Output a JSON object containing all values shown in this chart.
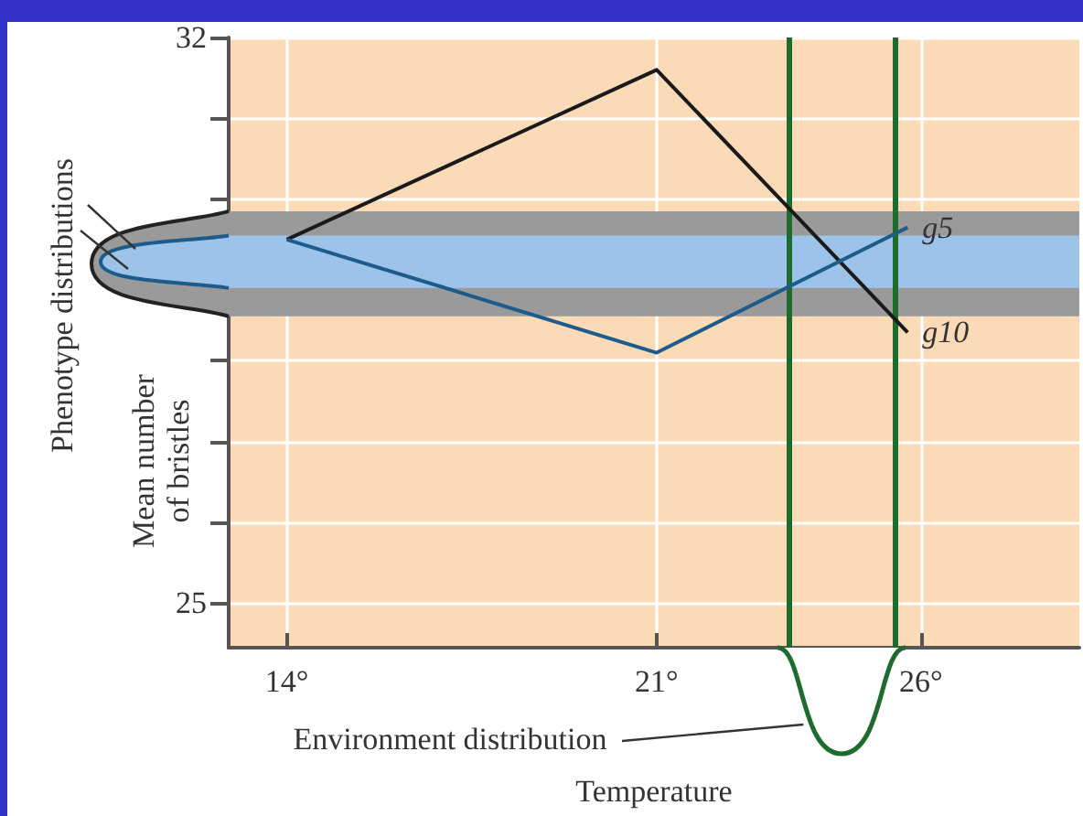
{
  "chart_data": {
    "type": "line",
    "ylabel": "Mean number\nof bristles",
    "xlabel": "Temperature",
    "annotations": [
      "Phenotype distributions",
      "Environment distribution"
    ],
    "series": [
      {
        "name": "g10",
        "color": "#1a1a1a",
        "x": [
          14,
          21,
          25.75
        ],
        "values": [
          29.5,
          31.6,
          28.35
        ]
      },
      {
        "name": "g5",
        "color": "#1d5c8a",
        "x": [
          14,
          21,
          25.75
        ],
        "values": [
          29.5,
          28.1,
          29.65
        ]
      }
    ],
    "xlim": [
      12.9,
      29
    ],
    "xticks": [
      {
        "value": 14,
        "label": "14°"
      },
      {
        "value": 21,
        "label": "21°"
      },
      {
        "value": 26,
        "label": "26°"
      }
    ],
    "ylim": [
      24.45,
      32
    ],
    "yticks": [
      25,
      {
        "value": 26,
        "label": null
      },
      {
        "value": 27,
        "label": null
      },
      {
        "value": 28,
        "label": null
      },
      {
        "value": 29,
        "label": null
      },
      {
        "value": 30,
        "label": null
      },
      {
        "value": 31,
        "label": null
      },
      32
    ],
    "grid": true,
    "marker": "none",
    "bands": [
      {
        "axis": "y",
        "from": 28.55,
        "to": 29.85,
        "color": "#9a9a9a"
      },
      {
        "axis": "y",
        "from": 28.9,
        "to": 29.55,
        "color": "#9dc3ea"
      }
    ],
    "ref_lines": [
      {
        "axis": "x",
        "value": 23.5,
        "color": "#1e6b2e"
      },
      {
        "axis": "x",
        "value": 25.5,
        "color": "#1e6b2e"
      }
    ]
  }
}
